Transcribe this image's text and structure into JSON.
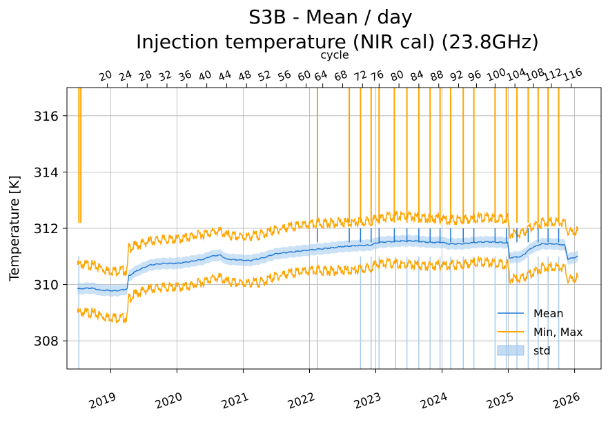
{
  "chart_data": {
    "type": "line",
    "title": "S3B - Mean / day",
    "subtitle": "Injection temperature (NIR cal) (23.8GHz)",
    "ylabel": "Temperature [K]",
    "top_xlabel": "cycle",
    "ylim": [
      307,
      317
    ],
    "xlim": [
      2018.34,
      2026.4
    ],
    "grid": true,
    "legend_position": "lower-right",
    "yticks": [
      308,
      310,
      312,
      314,
      316
    ],
    "xticks": [
      {
        "label": "2019",
        "x": 2019.0
      },
      {
        "label": "2020",
        "x": 2020.0
      },
      {
        "label": "2021",
        "x": 2021.0
      },
      {
        "label": "2022",
        "x": 2022.0
      },
      {
        "label": "2023",
        "x": 2023.0
      },
      {
        "label": "2024",
        "x": 2024.0
      },
      {
        "label": "2025",
        "x": 2025.0
      },
      {
        "label": "2026",
        "x": 2026.0
      }
    ],
    "cycle_ticks": [
      {
        "label": "20",
        "x": 2018.95
      },
      {
        "label": "24",
        "x": 2019.25
      },
      {
        "label": "28",
        "x": 2019.55
      },
      {
        "label": "32",
        "x": 2019.85
      },
      {
        "label": "36",
        "x": 2020.15
      },
      {
        "label": "40",
        "x": 2020.45
      },
      {
        "label": "44",
        "x": 2020.75
      },
      {
        "label": "48",
        "x": 2021.05
      },
      {
        "label": "52",
        "x": 2021.35
      },
      {
        "label": "56",
        "x": 2021.65
      },
      {
        "label": "60",
        "x": 2021.95
      },
      {
        "label": "64",
        "x": 2022.2
      },
      {
        "label": "68",
        "x": 2022.5
      },
      {
        "label": "72",
        "x": 2022.8
      },
      {
        "label": "76",
        "x": 2023.05
      },
      {
        "label": "80",
        "x": 2023.35
      },
      {
        "label": "84",
        "x": 2023.65
      },
      {
        "label": "88",
        "x": 2023.95
      },
      {
        "label": "92",
        "x": 2024.25
      },
      {
        "label": "96",
        "x": 2024.52
      },
      {
        "label": "100",
        "x": 2024.8
      },
      {
        "label": "104",
        "x": 2025.1
      },
      {
        "label": "108",
        "x": 2025.38
      },
      {
        "label": "112",
        "x": 2025.65
      },
      {
        "label": "116",
        "x": 2025.95
      }
    ],
    "series": [
      {
        "name": "Mean",
        "color": "#1f77d4",
        "x": [
          2018.5,
          2018.55,
          2018.7,
          2018.85,
          2018.95,
          2019.05,
          2019.15,
          2019.25,
          2019.27,
          2019.4,
          2019.6,
          2019.8,
          2020.0,
          2020.2,
          2020.4,
          2020.5,
          2020.65,
          2020.75,
          2020.9,
          2021.1,
          2021.3,
          2021.5,
          2021.7,
          2021.9,
          2022.1,
          2022.3,
          2022.5,
          2022.7,
          2022.9,
          2023.05,
          2023.2,
          2023.4,
          2023.6,
          2023.8,
          2024.0,
          2024.1,
          2024.3,
          2024.5,
          2024.7,
          2024.9,
          2024.99,
          2025.02,
          2025.2,
          2025.35,
          2025.5,
          2025.7,
          2025.85,
          2025.9,
          2026.05
        ],
        "values": [
          309.85,
          309.85,
          309.88,
          309.8,
          309.8,
          309.78,
          309.8,
          309.85,
          310.3,
          310.5,
          310.7,
          310.75,
          310.75,
          310.82,
          310.9,
          311.0,
          311.05,
          310.9,
          310.88,
          310.85,
          310.95,
          311.1,
          311.15,
          311.2,
          311.25,
          311.3,
          311.35,
          311.38,
          311.4,
          311.5,
          311.52,
          311.55,
          311.55,
          311.5,
          311.5,
          311.45,
          311.45,
          311.5,
          311.52,
          311.5,
          311.48,
          310.95,
          311.0,
          311.3,
          311.45,
          311.45,
          311.4,
          310.9,
          311.0
        ]
      },
      {
        "name": "Min, Max",
        "color": "#ffa500",
        "max_x": [
          2018.5,
          2018.7,
          2018.85,
          2018.95,
          2019.05,
          2019.15,
          2019.25,
          2019.27,
          2019.4,
          2019.6,
          2019.8,
          2020.0,
          2020.2,
          2020.4,
          2020.5,
          2020.65,
          2020.75,
          2020.9,
          2021.1,
          2021.3,
          2021.5,
          2021.7,
          2021.9,
          2022.1,
          2022.3,
          2022.5,
          2022.7,
          2022.9,
          2023.05,
          2023.2,
          2023.4,
          2023.6,
          2023.8,
          2024.0,
          2024.1,
          2024.3,
          2024.5,
          2024.7,
          2024.9,
          2024.99,
          2025.02,
          2025.2,
          2025.35,
          2025.5,
          2025.7,
          2025.85,
          2025.9,
          2026.05
        ],
        "max_values": [
          310.7,
          310.7,
          310.6,
          310.5,
          310.5,
          310.5,
          310.5,
          311.3,
          311.4,
          311.55,
          311.6,
          311.6,
          311.7,
          311.8,
          311.85,
          311.9,
          311.75,
          311.7,
          311.7,
          311.8,
          311.95,
          312.05,
          312.1,
          312.15,
          312.2,
          312.2,
          312.2,
          312.25,
          312.35,
          312.4,
          312.45,
          312.4,
          312.35,
          312.35,
          312.3,
          312.3,
          312.35,
          312.4,
          312.35,
          312.35,
          311.8,
          311.8,
          312.05,
          312.2,
          312.25,
          312.2,
          311.85,
          311.9
        ],
        "min_x": [
          2018.5,
          2018.7,
          2018.85,
          2018.95,
          2019.05,
          2019.15,
          2019.25,
          2019.27,
          2019.4,
          2019.6,
          2019.8,
          2020.0,
          2020.2,
          2020.4,
          2020.5,
          2020.65,
          2020.75,
          2020.9,
          2021.1,
          2021.3,
          2021.5,
          2021.7,
          2021.9,
          2022.1,
          2022.3,
          2022.5,
          2022.7,
          2022.9,
          2023.05,
          2023.2,
          2023.4,
          2023.6,
          2023.8,
          2024.0,
          2024.1,
          2024.3,
          2024.5,
          2024.7,
          2024.9,
          2024.99,
          2025.02,
          2025.2,
          2025.35,
          2025.5,
          2025.7,
          2025.85,
          2025.9,
          2026.05
        ],
        "min_values": [
          309.0,
          309.0,
          308.9,
          308.85,
          308.85,
          308.8,
          308.85,
          309.5,
          309.7,
          309.85,
          309.9,
          309.9,
          309.95,
          310.1,
          310.2,
          310.25,
          310.1,
          310.05,
          310.05,
          310.1,
          310.3,
          310.4,
          310.45,
          310.5,
          310.5,
          310.5,
          310.5,
          310.6,
          310.75,
          310.75,
          310.7,
          310.7,
          310.65,
          310.7,
          310.7,
          310.7,
          310.8,
          310.8,
          310.75,
          310.7,
          310.2,
          310.2,
          310.4,
          310.6,
          310.65,
          310.6,
          310.15,
          310.25
        ]
      },
      {
        "name": "std",
        "color": "#a9cdf0",
        "band_half_width": 0.2
      }
    ],
    "max_spikes_x": [
      2018.52,
      2018.55,
      2022.12,
      2022.6,
      2022.77,
      2022.93,
      2023.05,
      2023.28,
      2023.47,
      2023.65,
      2023.82,
      2023.97,
      2024.13,
      2024.32,
      2024.48,
      2024.8,
      2024.97,
      2025.13,
      2025.3,
      2025.45,
      2025.6,
      2025.76
    ],
    "std_spikes_x": [
      2018.52,
      2022.12,
      2022.77,
      2022.93,
      2023.05,
      2023.3,
      2023.47,
      2023.65,
      2023.82,
      2023.97,
      2024.13,
      2024.32,
      2024.48,
      2024.8,
      2024.97,
      2025.13,
      2025.3,
      2025.45,
      2025.6,
      2025.76
    ]
  }
}
